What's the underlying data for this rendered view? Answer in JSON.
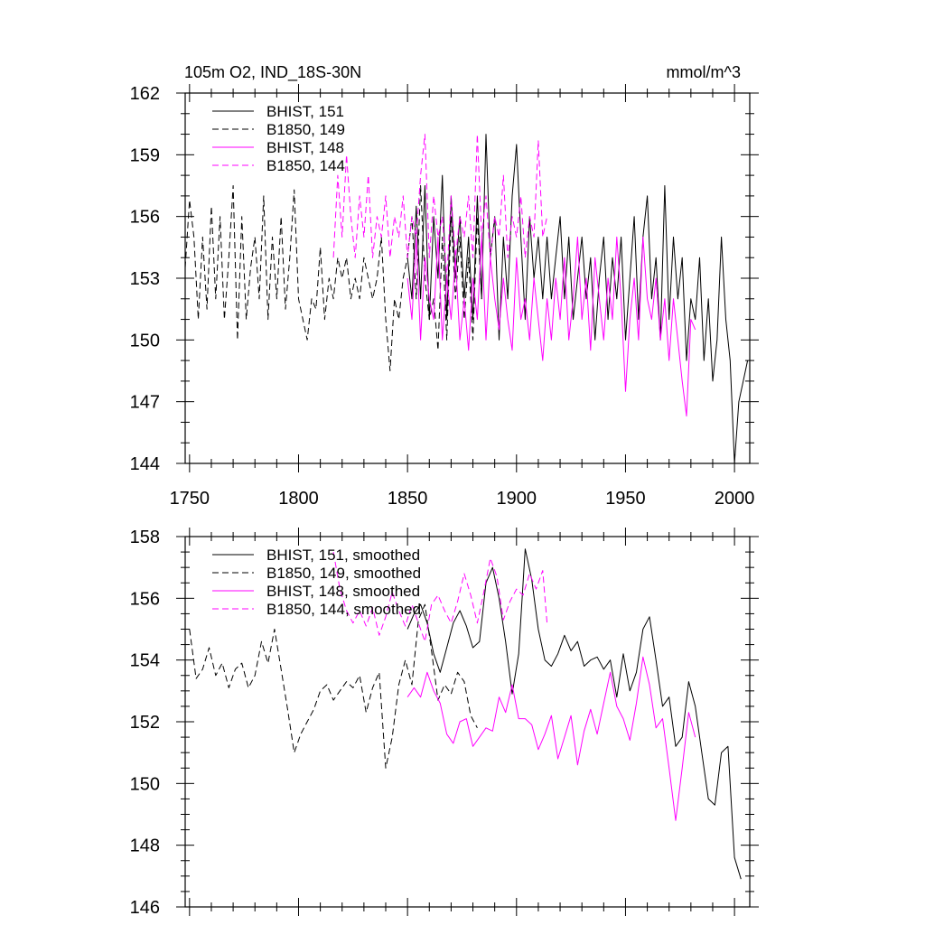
{
  "chart_data": [
    {
      "type": "line",
      "title": "105m O2, IND_18S-30N",
      "units": "mmol/m^3",
      "xlim": [
        1748,
        2007
      ],
      "ylim": [
        144,
        162
      ],
      "x_ticks": [
        1750,
        1800,
        1850,
        1900,
        1950,
        2000
      ],
      "x_tick_labels": [
        "1750",
        "1800",
        "1850",
        "1900",
        "1950",
        "2000"
      ],
      "y_ticks": [
        144,
        147,
        150,
        153,
        156,
        159,
        162
      ],
      "y_tick_labels": [
        "144",
        "147",
        "150",
        "153",
        "156",
        "159",
        "162"
      ],
      "legend_position": "top-left",
      "series": [
        {
          "name": "BHIST, 151",
          "color": "#000000",
          "dash": "solid",
          "x": [
            1850,
            1852,
            1854,
            1856,
            1858,
            1860,
            1862,
            1864,
            1866,
            1868,
            1870,
            1872,
            1874,
            1876,
            1878,
            1880,
            1882,
            1884,
            1886,
            1888,
            1890,
            1892,
            1894,
            1896,
            1898,
            1900,
            1902,
            1904,
            1906,
            1908,
            1910,
            1912,
            1914,
            1916,
            1918,
            1920,
            1922,
            1924,
            1926,
            1928,
            1930,
            1932,
            1934,
            1936,
            1938,
            1940,
            1942,
            1944,
            1946,
            1948,
            1950,
            1952,
            1954,
            1956,
            1958,
            1960,
            1962,
            1964,
            1966,
            1968,
            1970,
            1972,
            1974,
            1976,
            1978,
            1980,
            1982,
            1984,
            1986,
            1988,
            1990,
            1992,
            1994,
            1996,
            1998,
            2000,
            2002,
            2004,
            2006
          ],
          "values": [
            154,
            152,
            156.5,
            152,
            157.5,
            151,
            156,
            153,
            158,
            151,
            157,
            153,
            156,
            152,
            155,
            151,
            157,
            152,
            160,
            154,
            156,
            150,
            155,
            152,
            157,
            159.5,
            155,
            151,
            156,
            153,
            155,
            152,
            155,
            152,
            154,
            156,
            152,
            155,
            151,
            153,
            155,
            152,
            154,
            150,
            153,
            155,
            151,
            154,
            152,
            155,
            150,
            153,
            156,
            151,
            155,
            157,
            152,
            154,
            150,
            157.5,
            151,
            155,
            152,
            154,
            149,
            152,
            151,
            154,
            149,
            152,
            148,
            150,
            155,
            151,
            149,
            144,
            147,
            148,
            149
          ]
        },
        {
          "name": "B1850, 149",
          "color": "#000000",
          "dash": "dashed",
          "x": [
            1748,
            1750,
            1752,
            1754,
            1756,
            1758,
            1760,
            1762,
            1764,
            1766,
            1768,
            1770,
            1772,
            1774,
            1776,
            1778,
            1780,
            1782,
            1784,
            1786,
            1788,
            1790,
            1792,
            1794,
            1796,
            1798,
            1800,
            1802,
            1804,
            1806,
            1808,
            1810,
            1812,
            1814,
            1816,
            1818,
            1820,
            1822,
            1824,
            1826,
            1828,
            1830,
            1832,
            1834,
            1836,
            1838,
            1840,
            1842,
            1844,
            1846,
            1848,
            1850,
            1852,
            1854,
            1856,
            1858,
            1860,
            1862,
            1864,
            1866,
            1868,
            1870,
            1872,
            1874,
            1876,
            1878,
            1880,
            1882,
            1884
          ],
          "values": [
            153.5,
            156.8,
            155,
            151,
            155,
            151.5,
            156.5,
            152,
            156,
            151,
            154,
            157.5,
            150,
            156,
            151,
            153.5,
            155,
            152,
            157,
            151,
            155,
            152,
            156,
            151.5,
            154,
            157.3,
            152,
            151,
            150,
            152,
            151.5,
            154.5,
            151,
            153,
            152,
            154,
            153,
            154,
            152,
            153,
            152,
            154,
            153,
            152,
            153,
            155,
            151,
            148.5,
            152,
            151,
            153,
            154,
            156,
            152,
            157.5,
            153,
            151,
            152,
            149.5,
            155,
            150,
            156,
            152,
            155,
            151,
            154,
            150,
            156,
            152
          ]
        },
        {
          "name": "BHIST, 148",
          "color": "#ff00ff",
          "dash": "solid",
          "x": [
            1850,
            1852,
            1854,
            1856,
            1858,
            1860,
            1862,
            1864,
            1866,
            1868,
            1870,
            1872,
            1874,
            1876,
            1878,
            1880,
            1882,
            1884,
            1886,
            1888,
            1890,
            1892,
            1894,
            1896,
            1898,
            1900,
            1902,
            1904,
            1906,
            1908,
            1910,
            1912,
            1914,
            1916,
            1918,
            1920,
            1922,
            1924,
            1926,
            1928,
            1930,
            1932,
            1934,
            1936,
            1938,
            1940,
            1942,
            1944,
            1946,
            1948,
            1950,
            1952,
            1954,
            1956,
            1958,
            1960,
            1962,
            1964,
            1966,
            1968,
            1970,
            1972,
            1974,
            1976,
            1978,
            1980,
            1982
          ],
          "values": [
            153,
            151,
            155,
            150,
            154,
            152,
            151,
            155,
            150,
            153,
            151,
            154,
            150,
            152,
            149.5,
            153,
            151,
            155,
            150,
            154,
            152,
            150.5,
            153,
            151,
            149.5,
            154,
            151,
            152,
            150,
            153,
            151,
            149,
            152,
            150,
            153,
            151,
            154,
            150,
            152,
            155,
            151,
            153,
            149.5,
            154,
            152,
            150,
            153,
            151,
            155,
            152,
            147.5,
            151,
            153,
            150,
            155,
            152,
            151,
            153,
            150,
            152,
            149,
            152,
            150,
            148,
            146.3,
            151,
            150.5
          ]
        },
        {
          "name": "B1850, 144",
          "color": "#ff00ff",
          "dash": "dashed",
          "x": [
            1816,
            1818,
            1820,
            1822,
            1824,
            1826,
            1828,
            1830,
            1832,
            1834,
            1836,
            1838,
            1840,
            1842,
            1844,
            1846,
            1848,
            1850,
            1852,
            1854,
            1856,
            1858,
            1860,
            1862,
            1864,
            1866,
            1868,
            1870,
            1872,
            1874,
            1876,
            1878,
            1880,
            1882,
            1884,
            1886,
            1888,
            1890,
            1892,
            1894,
            1896,
            1898,
            1900,
            1902,
            1904,
            1906,
            1908,
            1910,
            1912,
            1914
          ],
          "values": [
            154,
            158,
            155,
            159,
            156,
            154,
            157,
            155,
            158,
            154,
            156,
            155,
            157,
            154,
            156,
            155,
            157,
            154,
            156,
            155,
            158,
            160,
            154,
            157,
            155,
            156,
            153,
            157,
            154,
            156,
            155,
            157,
            154,
            160,
            155,
            157,
            154,
            156,
            155,
            158,
            154,
            156,
            155,
            157,
            154,
            156,
            155,
            159.7,
            155,
            156
          ]
        }
      ]
    },
    {
      "type": "line",
      "xlim": [
        1748,
        2007
      ],
      "ylim": [
        146,
        158
      ],
      "x_ticks": [
        1750,
        1800,
        1850,
        1900,
        1950,
        2000
      ],
      "y_ticks": [
        146,
        148,
        150,
        152,
        154,
        156,
        158
      ],
      "y_tick_labels": [
        "146",
        "148",
        "150",
        "152",
        "154",
        "156",
        "158"
      ],
      "legend_position": "top-left",
      "series": [
        {
          "name": "BHIST, 151, smoothed",
          "color": "#000000",
          "dash": "solid",
          "x": [
            1850,
            1853,
            1856,
            1859,
            1862,
            1865,
            1868,
            1871,
            1874,
            1877,
            1880,
            1883,
            1886,
            1889,
            1892,
            1895,
            1898,
            1901,
            1904,
            1907,
            1910,
            1913,
            1916,
            1919,
            1922,
            1925,
            1928,
            1931,
            1934,
            1937,
            1940,
            1943,
            1946,
            1949,
            1952,
            1955,
            1958,
            1961,
            1964,
            1967,
            1970,
            1973,
            1976,
            1979,
            1982,
            1985,
            1988,
            1991,
            1994,
            1997,
            2000,
            2003
          ],
          "values": [
            155,
            155.5,
            155.8,
            155.2,
            154.2,
            153.6,
            154.4,
            155.2,
            155.6,
            155.1,
            154.4,
            154.6,
            156.5,
            157,
            156,
            154.6,
            152.9,
            154.2,
            157.6,
            156.6,
            155,
            154,
            153.8,
            154.2,
            154.8,
            154.3,
            154.6,
            153.8,
            154,
            154.1,
            153.7,
            154,
            152.8,
            154.2,
            153,
            153.6,
            155,
            155.4,
            154,
            152.5,
            152.8,
            151.2,
            151.5,
            153.3,
            152.5,
            151,
            149.5,
            149.3,
            151,
            151.2,
            147.6,
            146.9
          ]
        },
        {
          "name": "B1850, 149, smoothed",
          "color": "#000000",
          "dash": "dashed",
          "x": [
            1750,
            1753,
            1756,
            1759,
            1762,
            1765,
            1768,
            1771,
            1774,
            1777,
            1780,
            1783,
            1786,
            1789,
            1792,
            1795,
            1798,
            1801,
            1804,
            1807,
            1810,
            1813,
            1816,
            1819,
            1822,
            1825,
            1828,
            1831,
            1834,
            1837,
            1840,
            1843,
            1846,
            1849,
            1852,
            1855,
            1858,
            1861,
            1864,
            1867,
            1870,
            1873,
            1876,
            1879,
            1882
          ],
          "values": [
            155,
            153.4,
            153.7,
            154.4,
            153.5,
            153.9,
            153.1,
            153.7,
            153.9,
            153.1,
            153.5,
            154.6,
            153.9,
            155,
            153.7,
            152.4,
            151,
            151.6,
            152,
            152.4,
            153,
            153.2,
            152.7,
            153,
            153.3,
            153.1,
            153.5,
            152.3,
            153.1,
            153.6,
            150.5,
            151.5,
            153.2,
            154,
            153.2,
            155.3,
            155.8,
            154.3,
            152.7,
            153.2,
            152.9,
            153.6,
            153.3,
            152.2,
            151.8
          ]
        },
        {
          "name": "BHIST, 148, smoothed",
          "color": "#ff00ff",
          "dash": "solid",
          "x": [
            1850,
            1853,
            1856,
            1859,
            1862,
            1865,
            1868,
            1871,
            1874,
            1877,
            1880,
            1883,
            1886,
            1889,
            1892,
            1895,
            1898,
            1901,
            1904,
            1907,
            1910,
            1913,
            1916,
            1919,
            1922,
            1925,
            1928,
            1931,
            1934,
            1937,
            1940,
            1943,
            1946,
            1949,
            1952,
            1955,
            1958,
            1961,
            1964,
            1967,
            1970,
            1973,
            1976,
            1979,
            1982
          ],
          "values": [
            152.8,
            153.1,
            152.8,
            153.6,
            153,
            152.6,
            151.6,
            151.3,
            152,
            152.1,
            151.2,
            151.5,
            151.8,
            151.7,
            152.8,
            152.3,
            153.2,
            152.1,
            152.1,
            151.9,
            151.1,
            151.6,
            152.2,
            150.8,
            151.5,
            152.2,
            150.6,
            151.7,
            152.4,
            151.6,
            152.6,
            153.6,
            152.5,
            152.1,
            151.4,
            152.6,
            154.1,
            153.2,
            151.8,
            152.1,
            150.5,
            148.8,
            150.5,
            152.3,
            151.5
          ]
        },
        {
          "name": "B1850, 144, smoothed",
          "color": "#ff00ff",
          "dash": "dashed",
          "x": [
            1816,
            1819,
            1822,
            1825,
            1828,
            1831,
            1834,
            1837,
            1840,
            1843,
            1846,
            1849,
            1852,
            1855,
            1858,
            1861,
            1864,
            1867,
            1870,
            1873,
            1876,
            1879,
            1882,
            1885,
            1888,
            1891,
            1894,
            1897,
            1900,
            1903,
            1906,
            1909,
            1912,
            1914
          ],
          "values": [
            157.5,
            156.3,
            155.6,
            155.2,
            155.6,
            155.1,
            155.7,
            154.8,
            155.4,
            156.2,
            155.6,
            155.1,
            155.8,
            155.2,
            154.6,
            155.8,
            156.1,
            155.6,
            155.2,
            155.9,
            156.8,
            156.1,
            155.2,
            156.2,
            157.3,
            156.7,
            155.3,
            155.9,
            156.3,
            156.1,
            156.8,
            156.3,
            156.9,
            155.2
          ]
        }
      ]
    }
  ]
}
